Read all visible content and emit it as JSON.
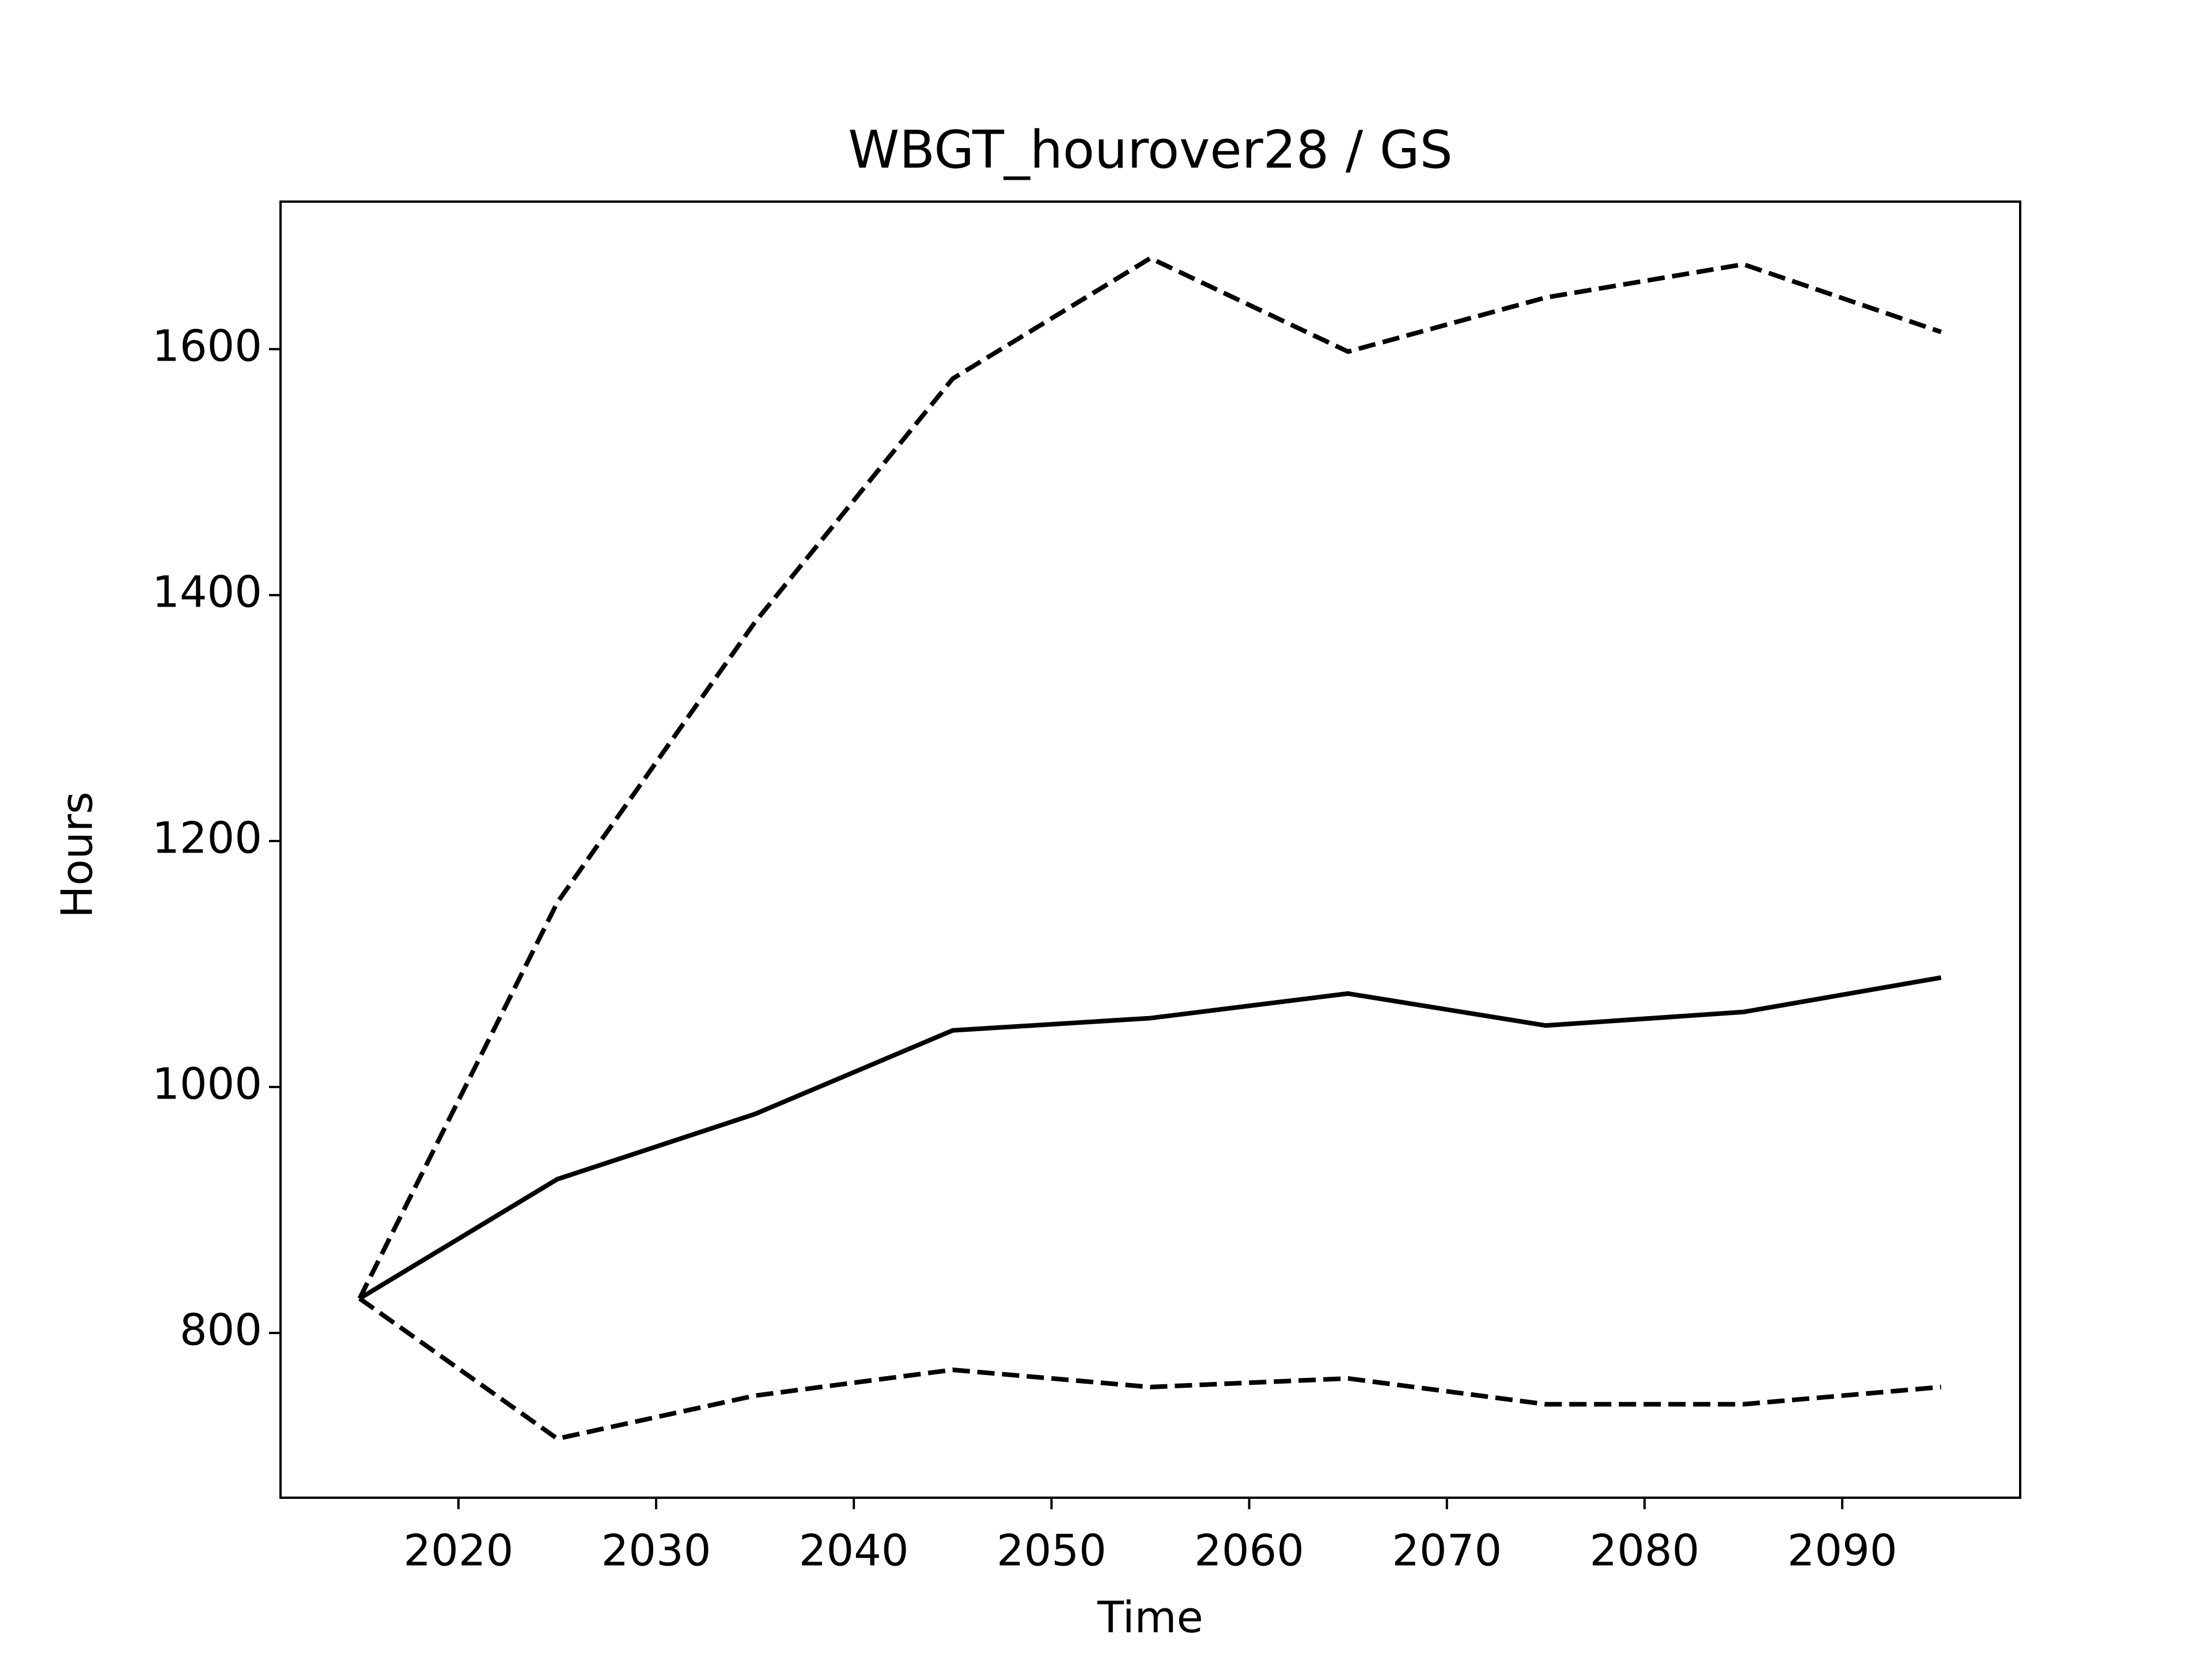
{
  "chart_data": {
    "type": "line",
    "title": "WBGT_hourover28 / GS",
    "x_label": "Time",
    "y_label": "Hours",
    "x": [
      2015,
      2025,
      2035,
      2045,
      2055,
      2065,
      2075,
      2085,
      2095
    ],
    "series": [
      {
        "color": "#000000",
        "linestyle": "solid",
        "values": [
          828,
          925,
          978,
          1046,
          1056,
          1076,
          1050,
          1061,
          1089
        ]
      },
      {
        "color": "#000000",
        "linestyle": "dashed",
        "values": [
          828,
          1150,
          1378,
          1576,
          1674,
          1598,
          1642,
          1669,
          1614
        ]
      },
      {
        "color": "#000000",
        "linestyle": "dashed",
        "values": [
          828,
          714,
          749,
          770,
          756,
          763,
          742,
          742,
          756
        ]
      }
    ],
    "xlim": [
      2011,
      2099
    ],
    "ylim": [
      666,
      1720
    ],
    "xticks": [
      2020,
      2030,
      2040,
      2050,
      2060,
      2070,
      2080,
      2090
    ],
    "yticks": [
      800,
      1000,
      1200,
      1400,
      1600
    ],
    "grid": false
  }
}
